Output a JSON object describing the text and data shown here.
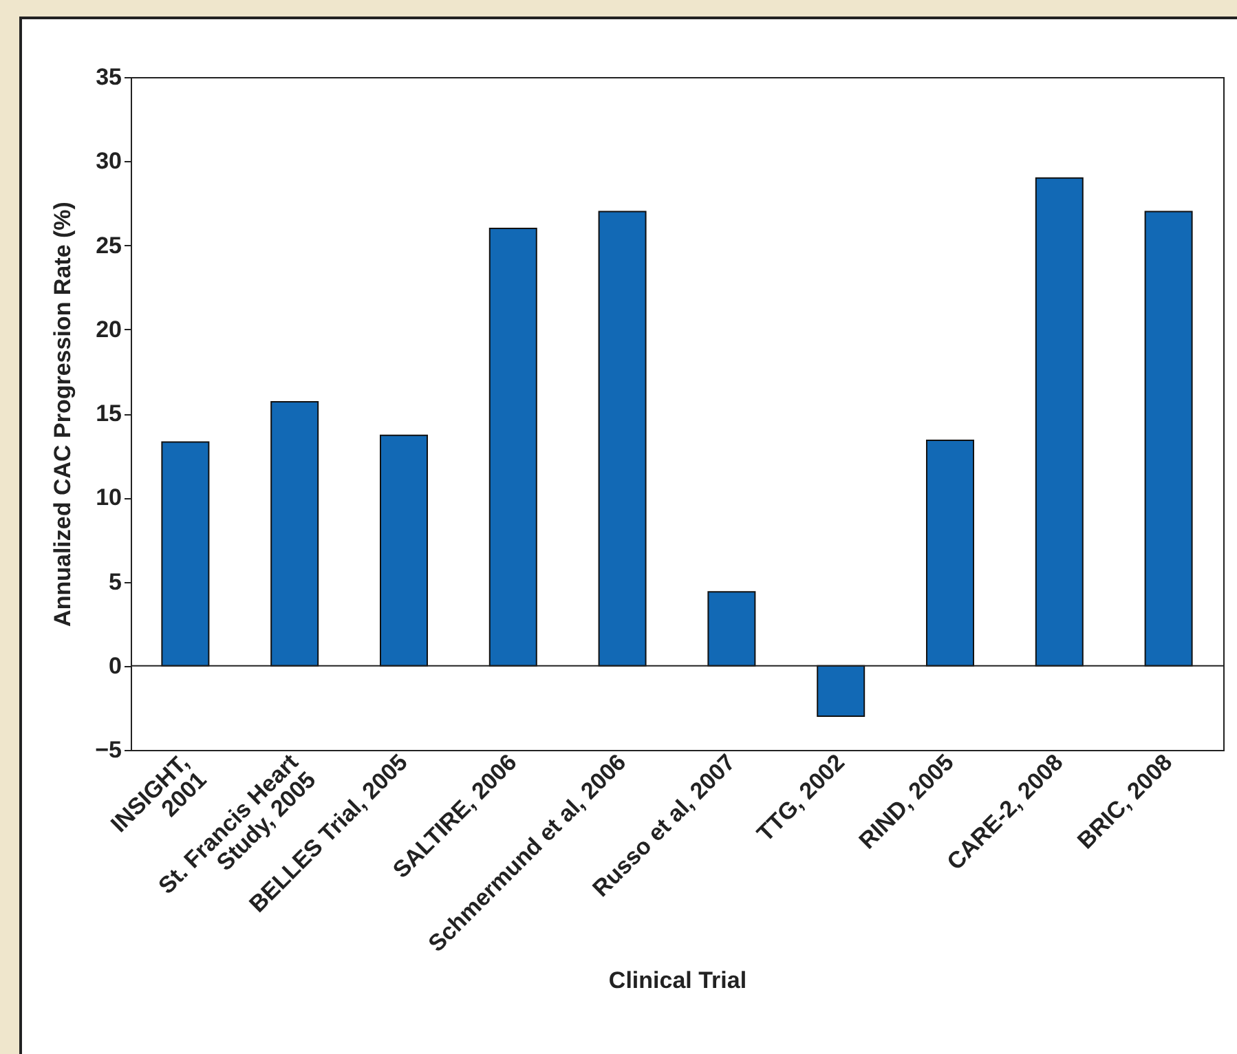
{
  "chart_data": {
    "type": "bar",
    "xlabel": "Clinical Trial",
    "ylabel": "Annualized CAC Progression Rate (%)",
    "categories": [
      "INSIGHT,\n2001",
      "St. Francis Heart\nStudy, 2005",
      "BELLES Trial, 2005",
      "SALTIRE, 2006",
      "Schmermund et al, 2006",
      "Russo et al, 2007",
      "TTG, 2002",
      "RIND, 2005",
      "CARE-2, 2008",
      "BRIC, 2008"
    ],
    "values": [
      13.3,
      15.7,
      13.7,
      26.0,
      27.0,
      4.4,
      -3.0,
      13.4,
      29.0,
      27.0
    ],
    "color": "#1269b5",
    "ylim": [
      -5,
      35
    ],
    "yticks": [
      -5,
      0,
      5,
      10,
      15,
      20,
      25,
      30,
      35
    ]
  }
}
